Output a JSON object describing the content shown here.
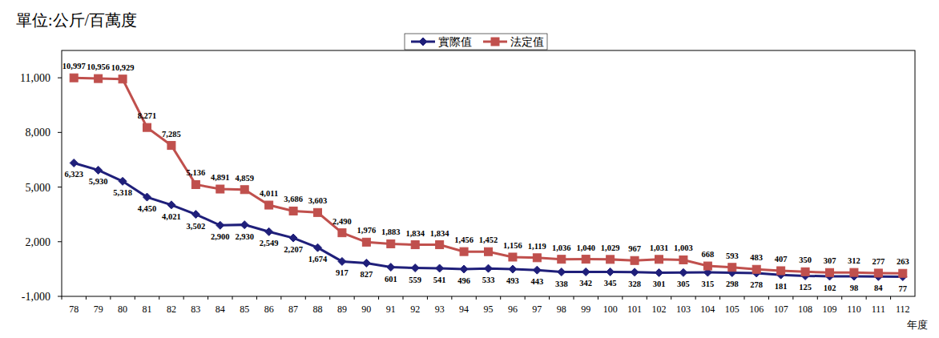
{
  "chart_data": {
    "type": "line",
    "y_label": "單位:公斤/百萬度",
    "x_label": "年度",
    "categories": [
      "78",
      "79",
      "80",
      "81",
      "82",
      "83",
      "84",
      "85",
      "86",
      "87",
      "88",
      "89",
      "90",
      "91",
      "92",
      "93",
      "94",
      "95",
      "96",
      "97",
      "98",
      "99",
      "100",
      "101",
      "102",
      "103",
      "104",
      "105",
      "106",
      "107",
      "108",
      "109",
      "110",
      "111",
      "112"
    ],
    "series": [
      {
        "name": "實際值",
        "color": "#1f1f7a",
        "marker": "diamond",
        "line_style": "solid",
        "values": [
          6323,
          5930,
          5318,
          4450,
          4021,
          3502,
          2900,
          2930,
          2549,
          2207,
          1674,
          917,
          827,
          601,
          559,
          541,
          496,
          533,
          493,
          443,
          338,
          342,
          345,
          328,
          301,
          305,
          315,
          298,
          278,
          181,
          125,
          102,
          98,
          84,
          77
        ],
        "value_labels": [
          "6,323",
          "5,930",
          "5,318",
          "4,450",
          "4,021",
          "3,502",
          "2,900",
          "2,930",
          "2,549",
          "2,207",
          "1,674",
          "917",
          "827",
          "601",
          "559",
          "541",
          "496",
          "533",
          "493",
          "443",
          "338",
          "342",
          "345",
          "328",
          "301",
          "305",
          "315",
          "298",
          "278",
          "181",
          "125",
          "102",
          "98",
          "84",
          "77"
        ]
      },
      {
        "name": "法定值",
        "color": "#c0504d",
        "marker": "square",
        "line_style": "solid",
        "values": [
          10997,
          10956,
          10929,
          8271,
          7285,
          5136,
          4891,
          4859,
          4011,
          3686,
          3603,
          2490,
          1976,
          1883,
          1834,
          1834,
          1456,
          1452,
          1156,
          1119,
          1036,
          1040,
          1029,
          967,
          1031,
          1003,
          668,
          593,
          483,
          407,
          350,
          307,
          312,
          277,
          263
        ],
        "value_labels": [
          "10,997",
          "10,956",
          "10,929",
          "8,271",
          "7,285",
          "5,136",
          "4,891",
          "4,859",
          "4,011",
          "3,686",
          "3,603",
          "2,490",
          "1,976",
          "1,883",
          "1,834",
          "1,834",
          "1,456",
          "1,452",
          "1,156",
          "1,119",
          "1,036",
          "1,040",
          "1,029",
          "967",
          "1,031",
          "1,003",
          "668",
          "593",
          "483",
          "407",
          "350",
          "307",
          "312",
          "277",
          "263"
        ]
      }
    ],
    "ylim": [
      -1000,
      12500
    ],
    "yticks": [
      {
        "value": -1000,
        "label": "-1,000"
      },
      {
        "value": 2000,
        "label": "2,000"
      },
      {
        "value": 5000,
        "label": "5,000"
      },
      {
        "value": 8000,
        "label": "8,000"
      },
      {
        "value": 11000,
        "label": "11,000"
      }
    ],
    "grid": false,
    "legend": "top",
    "data_labels": true
  }
}
